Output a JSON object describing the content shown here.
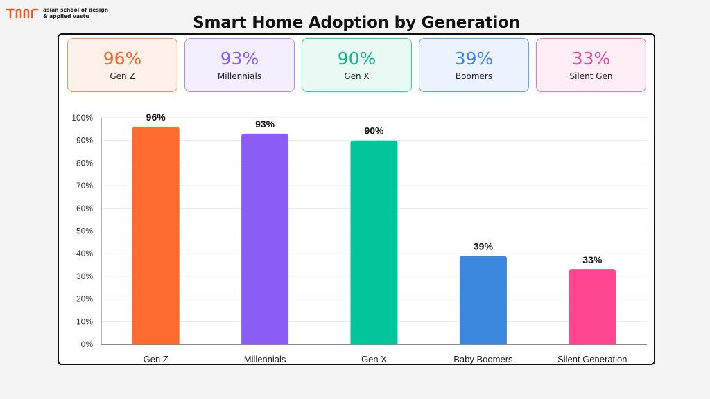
{
  "brand": {
    "line1": "asian school of design",
    "line2": "& applied vastu",
    "color": "#e2622a"
  },
  "title": "Smart Home Adoption by Generation",
  "cards": [
    {
      "value": "96%",
      "label": "Gen Z",
      "color": "#f56a2c",
      "bg": "#fdf1ea",
      "border": "#f5915f"
    },
    {
      "value": "93%",
      "label": "Millennials",
      "color": "#8b5cf6",
      "bg": "#f3efff",
      "border": "#a78bfa"
    },
    {
      "value": "90%",
      "label": "Gen X",
      "color": "#10b981",
      "bg": "#e9faf4",
      "border": "#34d399"
    },
    {
      "value": "39%",
      "label": "Boomers",
      "color": "#3b82f6",
      "bg": "#ecf3fe",
      "border": "#60a5fa"
    },
    {
      "value": "33%",
      "label": "Silent Gen",
      "color": "#ec4899",
      "bg": "#fdeef5",
      "border": "#f472b6"
    }
  ],
  "chart_data": {
    "type": "bar",
    "title": "Smart Home Adoption by Generation",
    "categories": [
      "Gen Z",
      "Millennials",
      "Gen X",
      "Baby Boomers",
      "Silent Generation"
    ],
    "values": [
      96,
      93,
      90,
      39,
      33
    ],
    "data_labels": [
      "96%",
      "93%",
      "90%",
      "39%",
      "33%"
    ],
    "colors": [
      "#ff6b2c",
      "#8b5cf6",
      "#00c49a",
      "#3a87dd",
      "#ff4590"
    ],
    "ylim": [
      0,
      100
    ],
    "yticks": [
      0,
      10,
      20,
      30,
      40,
      50,
      60,
      70,
      80,
      90,
      100
    ],
    "ytick_labels": [
      "0%",
      "10%",
      "20%",
      "30%",
      "40%",
      "50%",
      "60%",
      "70%",
      "80%",
      "90%",
      "100%"
    ],
    "xlabel": "",
    "ylabel": "",
    "grid": true,
    "legend": false
  }
}
